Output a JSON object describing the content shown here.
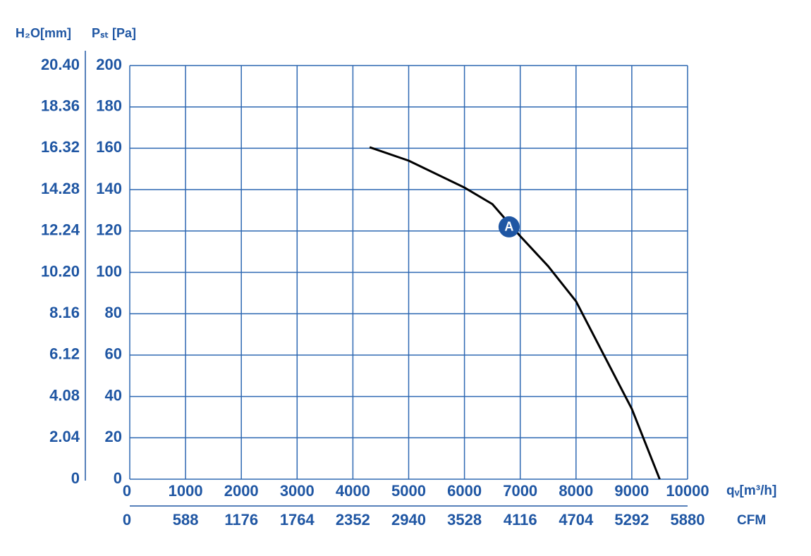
{
  "chart_data": {
    "type": "line",
    "y_label": "Pₛₜ [Pa]",
    "y2_label": "H₂O[mm]",
    "x_label": "qᵥ[m³/h]",
    "x2_label": "CFM",
    "x": [
      4300,
      5000,
      6000,
      6500,
      7000,
      7500,
      8000,
      8500,
      9000,
      9500
    ],
    "series": [
      {
        "color": "#000000",
        "values": [
          160.5,
          154,
          141,
          133,
          117.5,
          103,
          86,
          60,
          34,
          0
        ]
      }
    ],
    "xlim": [
      0,
      10000
    ],
    "xticks": [
      0,
      1000,
      2000,
      3000,
      4000,
      5000,
      6000,
      7000,
      8000,
      9000,
      10000
    ],
    "x2lim": [
      0,
      5880
    ],
    "x2ticks": [
      0,
      588,
      1176,
      1764,
      2352,
      2940,
      3528,
      4116,
      4704,
      5292,
      5880
    ],
    "ylim": [
      0,
      200
    ],
    "yticks": [
      0,
      20,
      40,
      60,
      80,
      100,
      120,
      140,
      160,
      180,
      200
    ],
    "y2lim": [
      0,
      20.4
    ],
    "y2ticks": [
      0,
      2.04,
      4.08,
      6.12,
      8.16,
      {
        "value": 10.2,
        "label": "10.20"
      },
      12.24,
      14.28,
      16.32,
      18.36,
      {
        "value": 20.4,
        "label": "20.40"
      }
    ],
    "grid": true,
    "grid_color": "#2e68b2",
    "label_color": "#1f56a3",
    "annotations": [
      {
        "text": "A",
        "x": 6800,
        "y": 122,
        "color": "#1f56a3"
      }
    ]
  }
}
